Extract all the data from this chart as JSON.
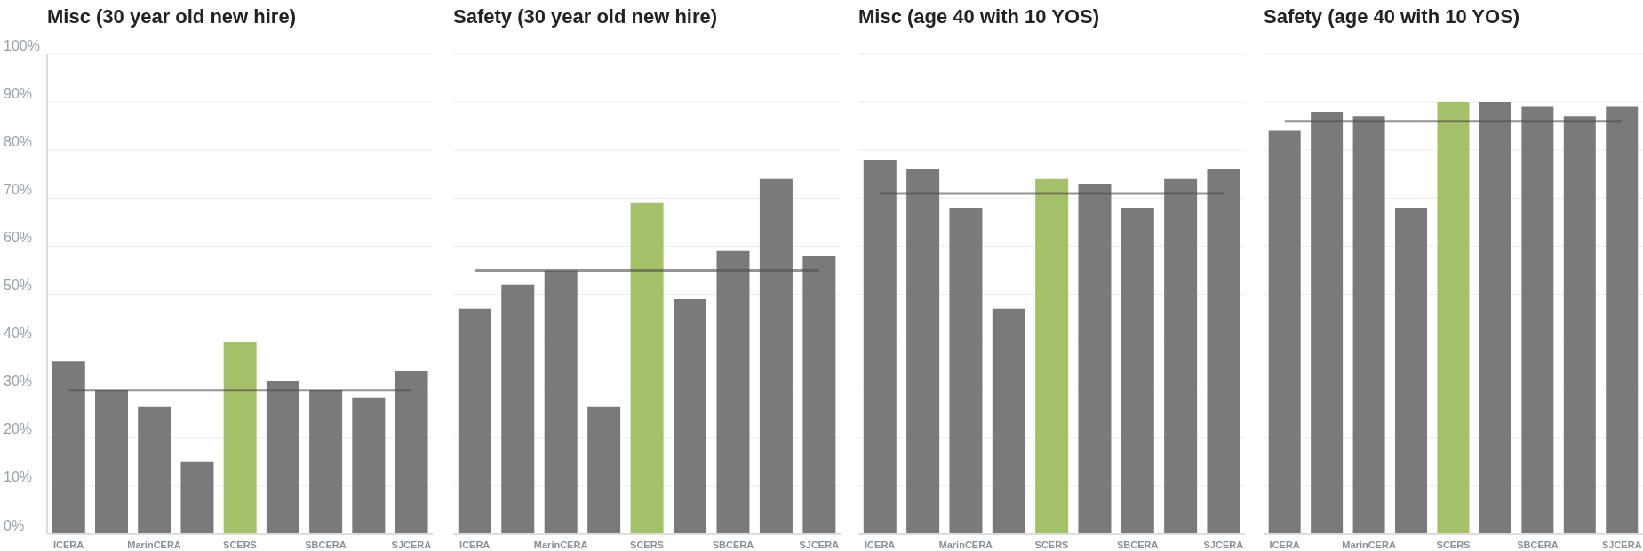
{
  "chart_data": [
    {
      "type": "bar",
      "title": "Misc (30 year old new hire)",
      "categories": [
        "ICERA",
        null,
        "MarinCERA",
        null,
        "SCERS",
        null,
        "SBCERA",
        null,
        "SJCERA"
      ],
      "values": [
        36,
        30,
        26.5,
        15,
        40,
        32,
        30,
        28.5,
        34
      ],
      "colors": [
        "#7a7a7a",
        "#7a7a7a",
        "#7a7a7a",
        "#7a7a7a",
        "#a4c16a",
        "#7a7a7a",
        "#7a7a7a",
        "#7a7a7a",
        "#7a7a7a"
      ],
      "ylim": [
        0,
        100
      ],
      "yticks": [
        {
          "value": 0,
          "label": "0%"
        },
        {
          "value": 10,
          "label": "10%"
        },
        {
          "value": 20,
          "label": "20%"
        },
        {
          "value": 30,
          "label": "30%"
        },
        {
          "value": 40,
          "label": "40%"
        },
        {
          "value": 50,
          "label": "50%"
        },
        {
          "value": 60,
          "label": "60%"
        },
        {
          "value": 70,
          "label": "70%"
        },
        {
          "value": 80,
          "label": "80%"
        },
        {
          "value": 90,
          "label": "90%"
        },
        {
          "value": 100,
          "label": "100%"
        }
      ],
      "grid": "y",
      "ref_lines": [
        {
          "axis": "y",
          "value": 30,
          "color": "#4d4d4d"
        }
      ]
    },
    {
      "type": "bar",
      "title": "Safety (30 year old new hire)",
      "categories": [
        "ICERA",
        null,
        "MarinCERA",
        null,
        "SCERS",
        null,
        "SBCERA",
        null,
        "SJCERA"
      ],
      "values": [
        47,
        52,
        55,
        26.5,
        69,
        49,
        59,
        74,
        58
      ],
      "colors": [
        "#7a7a7a",
        "#7a7a7a",
        "#7a7a7a",
        "#7a7a7a",
        "#a4c16a",
        "#7a7a7a",
        "#7a7a7a",
        "#7a7a7a",
        "#7a7a7a"
      ],
      "ylim": [
        0,
        100
      ],
      "yticks": [
        0,
        10,
        20,
        30,
        40,
        50,
        60,
        70,
        80,
        90,
        100
      ],
      "grid": "y",
      "tick_labels": "x",
      "ref_lines": [
        {
          "axis": "y",
          "value": 55,
          "color": "#4d4d4d"
        }
      ]
    },
    {
      "type": "bar",
      "title": "Misc (age 40 with 10 YOS)",
      "categories": [
        "ICERA",
        null,
        "MarinCERA",
        null,
        "SCERS",
        null,
        "SBCERA",
        null,
        "SJCERA"
      ],
      "values": [
        78,
        76,
        68,
        47,
        74,
        73,
        68,
        74,
        76
      ],
      "colors": [
        "#7a7a7a",
        "#7a7a7a",
        "#7a7a7a",
        "#7a7a7a",
        "#a4c16a",
        "#7a7a7a",
        "#7a7a7a",
        "#7a7a7a",
        "#7a7a7a"
      ],
      "ylim": [
        0,
        100
      ],
      "yticks": [
        0,
        10,
        20,
        30,
        40,
        50,
        60,
        70,
        80,
        90,
        100
      ],
      "grid": "y",
      "tick_labels": "x",
      "ref_lines": [
        {
          "axis": "y",
          "value": 71,
          "color": "#4d4d4d"
        }
      ]
    },
    {
      "type": "bar",
      "title": "Safety (age 40 with 10 YOS)",
      "categories": [
        "ICERA",
        null,
        "MarinCERA",
        null,
        "SCERS",
        null,
        "SBCERA",
        null,
        "SJCERA"
      ],
      "values": [
        84,
        88,
        87,
        68,
        90,
        90,
        89,
        87,
        89
      ],
      "colors": [
        "#7a7a7a",
        "#7a7a7a",
        "#7a7a7a",
        "#7a7a7a",
        "#a4c16a",
        "#7a7a7a",
        "#7a7a7a",
        "#7a7a7a",
        "#7a7a7a"
      ],
      "ylim": [
        0,
        100
      ],
      "yticks": [
        0,
        10,
        20,
        30,
        40,
        50,
        60,
        70,
        80,
        90,
        100
      ],
      "grid": "y",
      "tick_labels": "x",
      "ref_lines": [
        {
          "axis": "y",
          "value": 86,
          "color": "#4d4d4d"
        }
      ]
    }
  ]
}
